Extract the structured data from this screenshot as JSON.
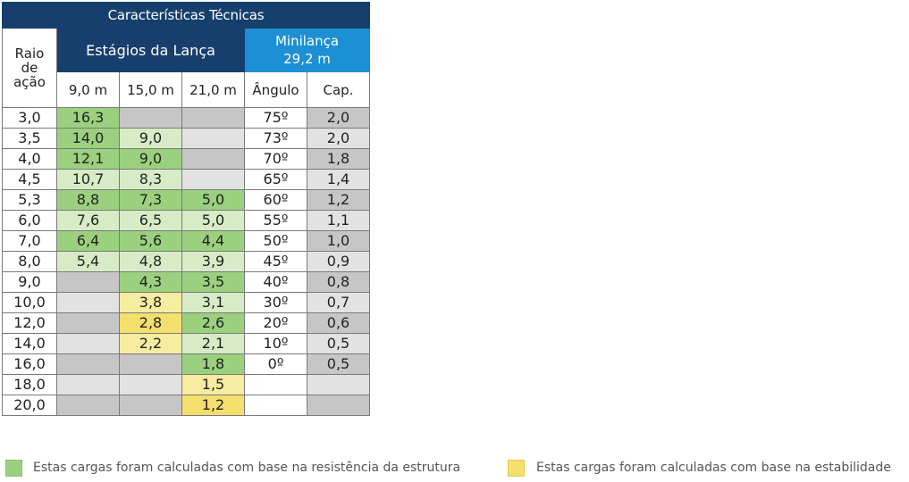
{
  "table": {
    "title": "Características Técnicas",
    "header": {
      "raio_label": "Raio de ação",
      "estagios_label": "Estágios da Lança",
      "minilanca_label": "Minilança 29,2 m",
      "sub": [
        "9,0 m",
        "15,0 m",
        "21,0 m",
        "Ângulo",
        "Cap."
      ]
    },
    "rows": [
      {
        "raio": "3,0",
        "c9": "16,3",
        "c15": "",
        "c21": "",
        "ang": "75º",
        "cap": "2,0"
      },
      {
        "raio": "3,5",
        "c9": "14,0",
        "c15": "9,0",
        "c21": "",
        "ang": "73º",
        "cap": "2,0"
      },
      {
        "raio": "4,0",
        "c9": "12,1",
        "c15": "9,0",
        "c21": "",
        "ang": "70º",
        "cap": "1,8"
      },
      {
        "raio": "4,5",
        "c9": "10,7",
        "c15": "8,3",
        "c21": "",
        "ang": "65º",
        "cap": "1,4"
      },
      {
        "raio": "5,3",
        "c9": "8,8",
        "c15": "7,3",
        "c21": "5,0",
        "ang": "60º",
        "cap": "1,2"
      },
      {
        "raio": "6,0",
        "c9": "7,6",
        "c15": "6,5",
        "c21": "5,0",
        "ang": "55º",
        "cap": "1,1"
      },
      {
        "raio": "7,0",
        "c9": "6,4",
        "c15": "5,6",
        "c21": "4,4",
        "ang": "50º",
        "cap": "1,0"
      },
      {
        "raio": "8,0",
        "c9": "5,4",
        "c15": "4,8",
        "c21": "3,9",
        "ang": "45º",
        "cap": "0,9"
      },
      {
        "raio": "9,0",
        "c9": "",
        "c15": "4,3",
        "c21": "3,5",
        "ang": "40º",
        "cap": "0,8"
      },
      {
        "raio": "10,0",
        "c9": "",
        "c15": "3,8",
        "c21": "3,1",
        "ang": "30º",
        "cap": "0,7"
      },
      {
        "raio": "12,0",
        "c9": "",
        "c15": "2,8",
        "c21": "2,6",
        "ang": "20º",
        "cap": "0,6"
      },
      {
        "raio": "14,0",
        "c9": "",
        "c15": "2,2",
        "c21": "2,1",
        "ang": "10º",
        "cap": "0,5"
      },
      {
        "raio": "16,0",
        "c9": "",
        "c15": "",
        "c21": "1,8",
        "ang": "0º",
        "cap": "0,5"
      },
      {
        "raio": "18,0",
        "c9": "",
        "c15": "",
        "c21": "1,5",
        "ang": "",
        "cap": ""
      },
      {
        "raio": "20,0",
        "c9": "",
        "c15": "",
        "c21": "1,2",
        "ang": "",
        "cap": ""
      }
    ],
    "cell_colors": {
      "green": "#9bd17e",
      "light_green": "#d7ecc6",
      "yellow": "#f5df6d",
      "light_yellow": "#f7ec9f",
      "gray": "#c6c6c6",
      "light_gray": "#e2e2e2",
      "header_dark_blue": "#173f6d",
      "header_light_blue": "#1d8fd4"
    }
  },
  "legend": {
    "green_text": "Estas cargas foram calculadas com base na resistência da estrutura",
    "yellow_text": "Estas cargas foram calculadas com base na estabilidade",
    "green_color": "#9bd17e",
    "yellow_color": "#f5df6d"
  }
}
